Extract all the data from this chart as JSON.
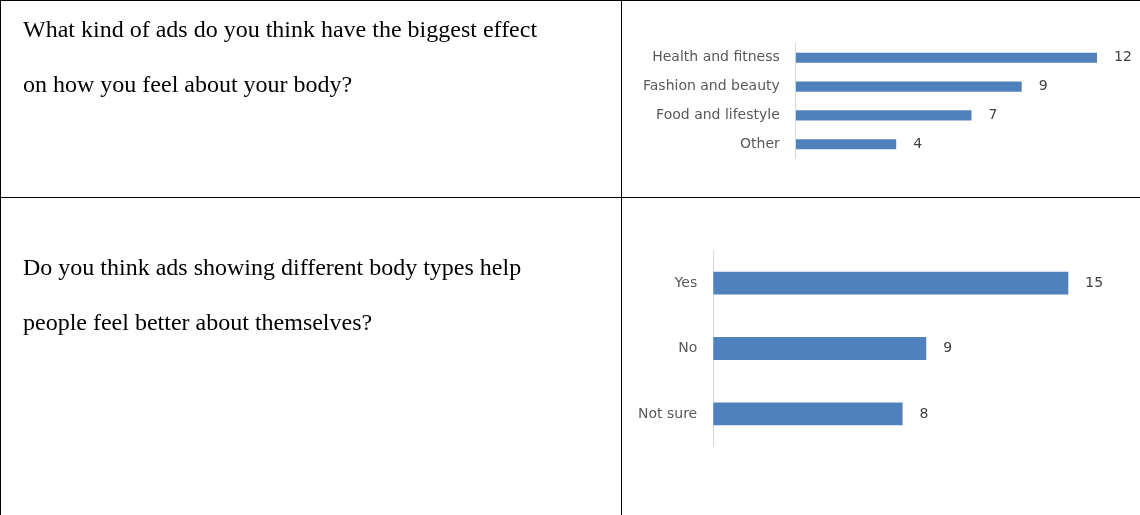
{
  "chart_data": [
    {
      "type": "bar",
      "orientation": "horizontal",
      "title": "What kind of ads do you think have the biggest effect on how you feel about your body?",
      "categories": [
        "Health and fitness",
        "Fashion and beauty",
        "Food and lifestyle",
        "Other"
      ],
      "values": [
        12,
        9,
        7,
        4
      ],
      "color": "#4f81bd",
      "data_labels": true
    },
    {
      "type": "bar",
      "orientation": "horizontal",
      "title": "Do you think ads showing different body types help people feel better about themselves?",
      "categories": [
        "Yes",
        "No",
        "Not sure"
      ],
      "values": [
        15,
        9,
        8
      ],
      "color": "#4f81bd",
      "data_labels": true
    }
  ]
}
